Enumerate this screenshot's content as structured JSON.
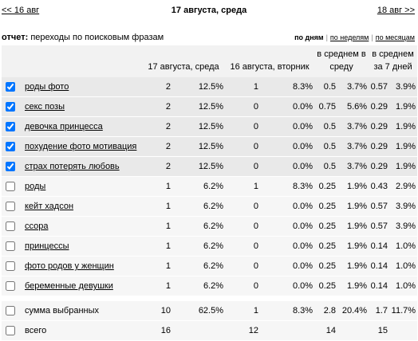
{
  "header": {
    "prev": "<< 16 авг",
    "title": "17 августа, среда",
    "next": "18 авг >>"
  },
  "report": {
    "label": "отчет:",
    "name": "переходы по поисковым фразам",
    "periods": [
      "по дням",
      "по неделям",
      "по месяцам"
    ],
    "active_period": 0
  },
  "table": {
    "columns": [
      "17 августа, среда",
      "16 августа, вторник",
      "в среднем в среду",
      "в среднем за 7 дней"
    ],
    "rows": [
      {
        "phrase": "роды фото",
        "checked": true,
        "cells": [
          "2",
          "12.5%",
          "1",
          "8.3%",
          "0.5",
          "3.7%",
          "0.57",
          "3.9%"
        ]
      },
      {
        "phrase": "секс позы",
        "checked": true,
        "cells": [
          "2",
          "12.5%",
          "0",
          "0.0%",
          "0.75",
          "5.6%",
          "0.29",
          "1.9%"
        ]
      },
      {
        "phrase": "девочка принцесса",
        "checked": true,
        "cells": [
          "2",
          "12.5%",
          "0",
          "0.0%",
          "0.5",
          "3.7%",
          "0.29",
          "1.9%"
        ]
      },
      {
        "phrase": "похудение фото мотивация",
        "checked": true,
        "cells": [
          "2",
          "12.5%",
          "0",
          "0.0%",
          "0.5",
          "3.7%",
          "0.29",
          "1.9%"
        ]
      },
      {
        "phrase": "страх потерять любовь",
        "checked": true,
        "cells": [
          "2",
          "12.5%",
          "0",
          "0.0%",
          "0.5",
          "3.7%",
          "0.29",
          "1.9%"
        ]
      },
      {
        "phrase": "роды",
        "checked": false,
        "cells": [
          "1",
          "6.2%",
          "1",
          "8.3%",
          "0.25",
          "1.9%",
          "0.43",
          "2.9%"
        ]
      },
      {
        "phrase": "кейт хадсон",
        "checked": false,
        "cells": [
          "1",
          "6.2%",
          "0",
          "0.0%",
          "0.25",
          "1.9%",
          "0.57",
          "3.9%"
        ]
      },
      {
        "phrase": "ссора",
        "checked": false,
        "cells": [
          "1",
          "6.2%",
          "0",
          "0.0%",
          "0.25",
          "1.9%",
          "0.57",
          "3.9%"
        ]
      },
      {
        "phrase": "принцессы",
        "checked": false,
        "cells": [
          "1",
          "6.2%",
          "0",
          "0.0%",
          "0.25",
          "1.9%",
          "0.14",
          "1.0%"
        ]
      },
      {
        "phrase": "фото родов у женщин",
        "checked": false,
        "cells": [
          "1",
          "6.2%",
          "0",
          "0.0%",
          "0.25",
          "1.9%",
          "0.14",
          "1.0%"
        ]
      },
      {
        "phrase": "беременные девушки",
        "checked": false,
        "cells": [
          "1",
          "6.2%",
          "0",
          "0.0%",
          "0.25",
          "1.9%",
          "0.14",
          "1.0%"
        ]
      }
    ],
    "sum": {
      "label": "сумма выбранных",
      "cells": [
        "10",
        "62.5%",
        "1",
        "8.3%",
        "2.8",
        "20.4%",
        "1.7",
        "11.7%"
      ]
    },
    "total": {
      "label": "всего",
      "cells": [
        "16",
        "12",
        "14",
        "15"
      ]
    }
  }
}
